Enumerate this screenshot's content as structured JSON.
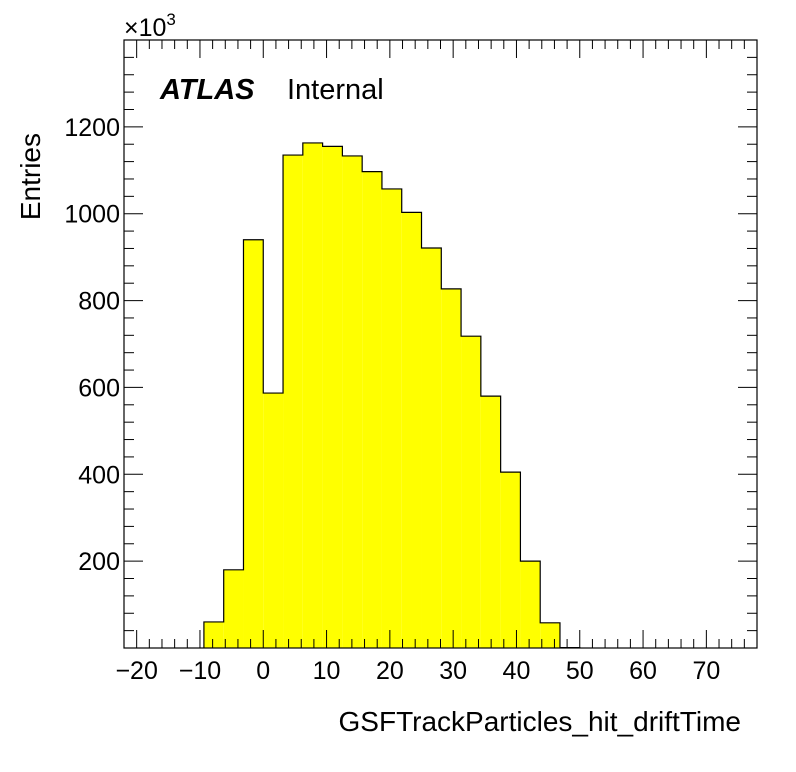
{
  "chart_data": {
    "type": "bar",
    "histogram": true,
    "xlabel": "GSFTrackParticles_hit_driftTime",
    "ylabel": "Entries",
    "y_multiplier_label": "×10",
    "y_multiplier_exponent": "3",
    "label_bold": "ATLAS",
    "label_text": "Internal",
    "fill_color": "#ffff00",
    "line_color": "#000000",
    "xlim": [
      -22,
      78
    ],
    "ylim": [
      0,
      1400
    ],
    "x_ticks": [
      -20,
      -10,
      0,
      10,
      20,
      30,
      40,
      50,
      60,
      70
    ],
    "x_tick_labels": [
      "−20",
      "−10",
      "0",
      "10",
      "20",
      "30",
      "40",
      "50",
      "60",
      "70"
    ],
    "y_ticks": [
      200,
      400,
      600,
      800,
      1000,
      1200
    ],
    "y_tick_labels": [
      "200",
      "400",
      "600",
      "800",
      "1000",
      "1200"
    ],
    "bin_width": 3.125,
    "bin_edges_start": -9.375,
    "values": [
      60,
      180,
      940,
      587,
      1135,
      1163,
      1155,
      1133,
      1097,
      1057,
      1003,
      921,
      827,
      718,
      580,
      405,
      200,
      58,
      1
    ]
  }
}
